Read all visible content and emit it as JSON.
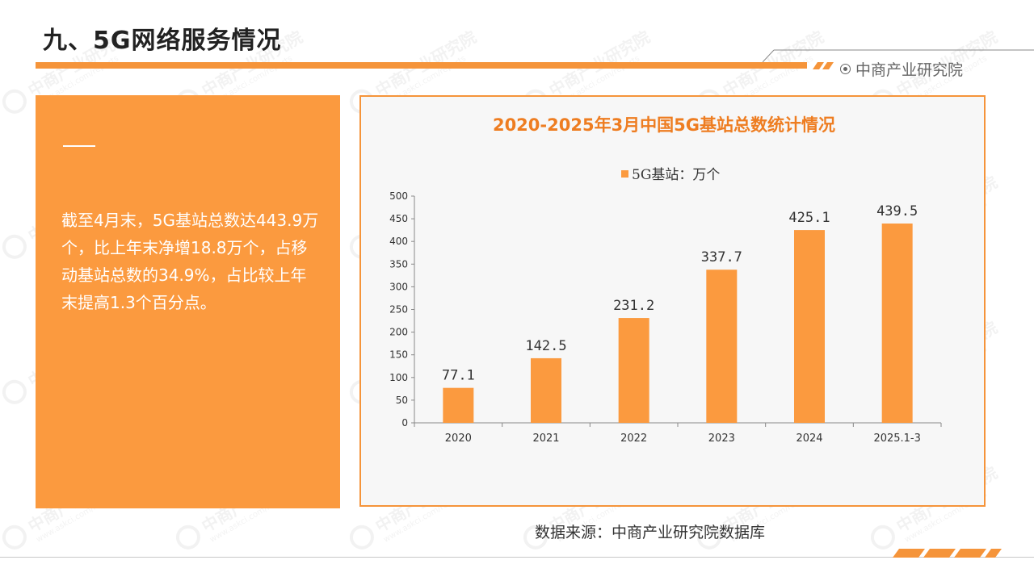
{
  "page": {
    "title": "九、5G网络服务情况",
    "brand": "中商产业研究院",
    "source": "数据来源：中商产业研究院数据库"
  },
  "panel": {
    "text": "截至4月末，5G基站总数达443.9万个，比上年末净增18.8万个，占移动基站总数的34.9%，占比较上年末提高1.3个百分点。"
  },
  "colors": {
    "accent": "#f5943a",
    "panel": "#fb9a3f",
    "bar": "#fb9a3f",
    "title": "#ee7d21"
  },
  "watermark": {
    "text": "中商产业研究院",
    "sub": "www.askci.com/reports"
  },
  "chart_data": {
    "type": "bar",
    "title": "2020-2025年3月中国5G基站总数统计情况",
    "categories": [
      "2020",
      "2021",
      "2022",
      "2023",
      "2024",
      "2025.1-3"
    ],
    "series": [
      {
        "name": "5G基站：万个",
        "values": [
          77.1,
          142.5,
          231.2,
          337.7,
          425.1,
          439.5
        ]
      }
    ],
    "data_labels": [
      "77.1",
      "142.5",
      "231.2",
      "337.7",
      "425.1",
      "439.5"
    ],
    "ylim": [
      0,
      500
    ],
    "yticks": [
      0,
      50,
      100,
      150,
      200,
      250,
      300,
      350,
      400,
      450,
      500
    ],
    "xlabel": "",
    "ylabel": "",
    "legend": "top-center",
    "grid": false
  }
}
